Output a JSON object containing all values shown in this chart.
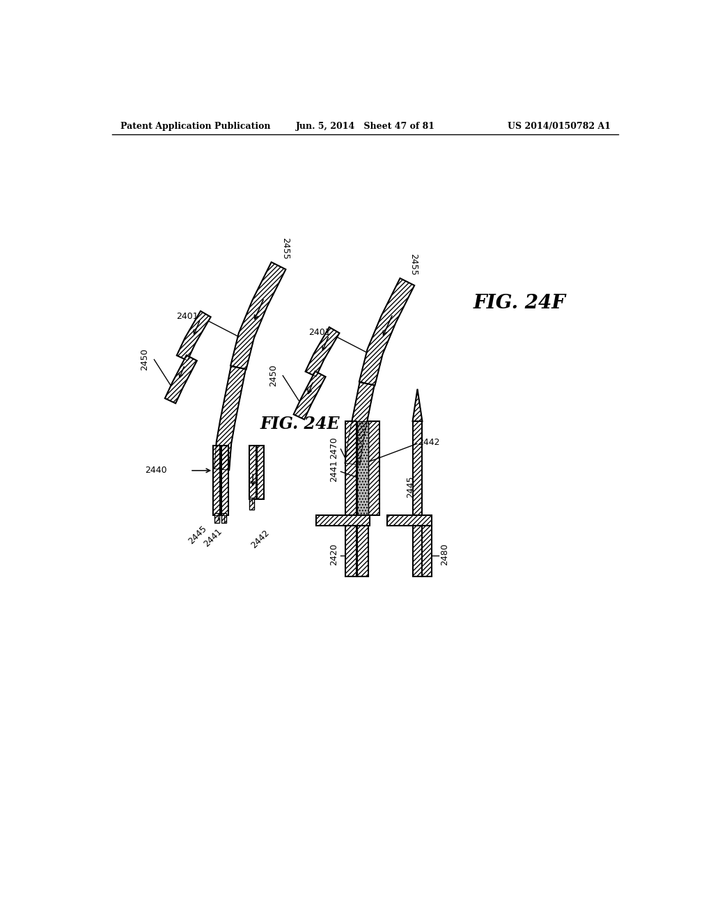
{
  "header_left": "Patent Application Publication",
  "header_center": "Jun. 5, 2014   Sheet 47 of 81",
  "header_right": "US 2014/0150782 A1",
  "fig_e_label": "FIG. 24E",
  "fig_f_label": "FIG. 24F"
}
